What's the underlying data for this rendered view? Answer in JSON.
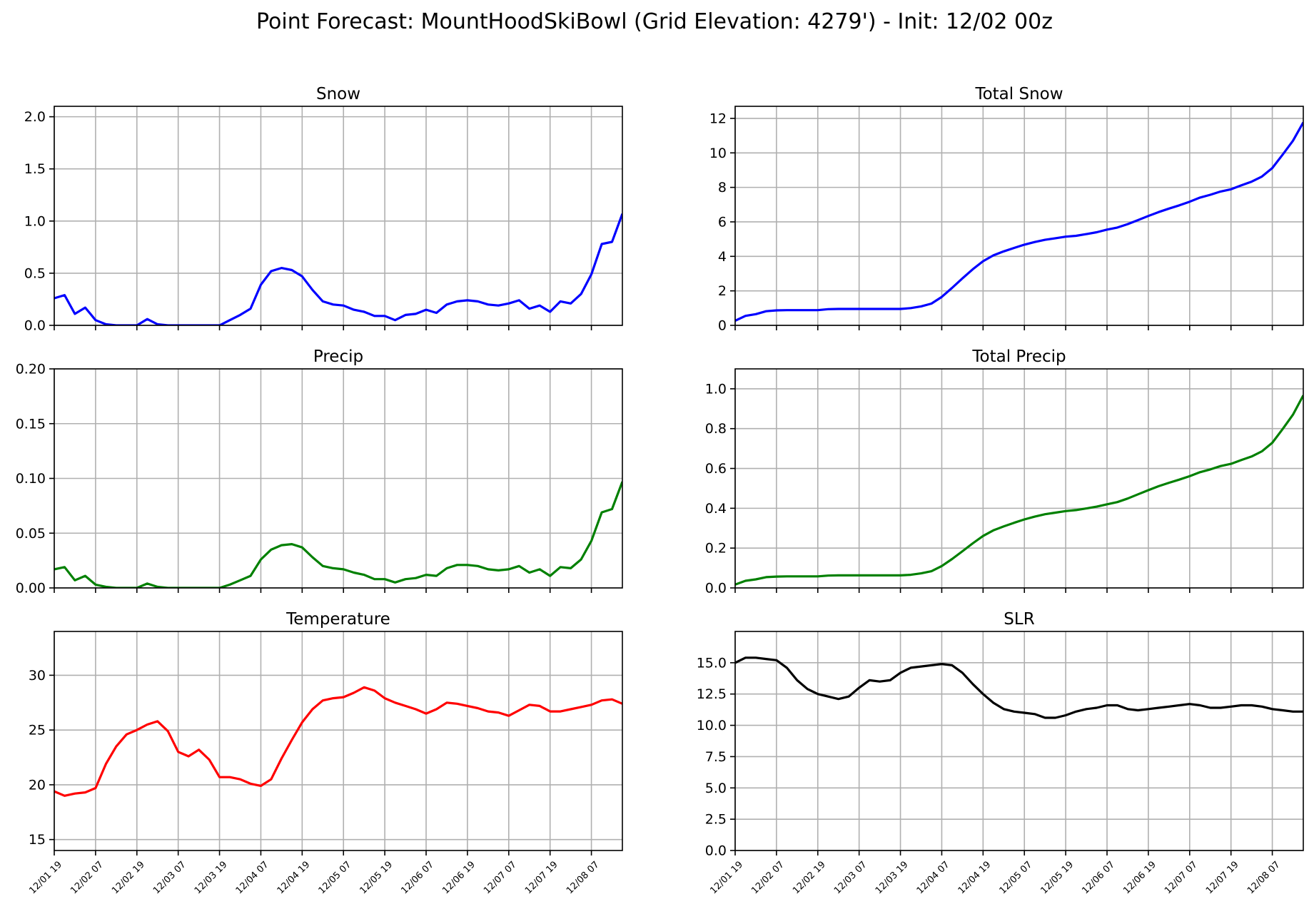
{
  "figure": {
    "title": "Point Forecast: MountHoodSkiBowl (Grid Elevation: 4279') - Init: 12/02 00z"
  },
  "x_tick_labels": [
    "12/01 19",
    "12/02 07",
    "12/02 19",
    "12/03 07",
    "12/03 19",
    "12/04 07",
    "12/04 19",
    "12/05 07",
    "12/05 19",
    "12/06 07",
    "12/06 19",
    "12/07 07",
    "12/07 19",
    "12/08 07"
  ],
  "chart_data": [
    {
      "id": "snow",
      "type": "line",
      "title": "Snow",
      "color": "#0000ff",
      "grid": true,
      "xlim": [
        0,
        55
      ],
      "ylim": [
        0,
        2.1
      ],
      "yticks": [
        0,
        0.5,
        1.0,
        1.5,
        2.0
      ],
      "ytick_labels": [
        "0.0",
        "0.5",
        "1.0",
        "1.5",
        "2.0"
      ],
      "xticks": [
        0,
        4,
        8,
        12,
        16,
        20,
        24,
        28,
        32,
        36,
        40,
        44,
        48,
        52
      ],
      "show_xtick_labels": false,
      "values": [
        0.26,
        0.29,
        0.11,
        0.17,
        0.05,
        0.01,
        0.0,
        0.0,
        0.0,
        0.06,
        0.01,
        0.0,
        0.0,
        0.0,
        0.0,
        0.0,
        0.0,
        0.05,
        0.1,
        0.16,
        0.39,
        0.52,
        0.55,
        0.53,
        0.47,
        0.34,
        0.23,
        0.2,
        0.19,
        0.15,
        0.13,
        0.09,
        0.09,
        0.05,
        0.1,
        0.11,
        0.15,
        0.12,
        0.2,
        0.23,
        0.24,
        0.23,
        0.2,
        0.19,
        0.21,
        0.24,
        0.16,
        0.19,
        0.13,
        0.23,
        0.21,
        0.3,
        0.49,
        0.78,
        0.8,
        1.07
      ]
    },
    {
      "id": "total-snow",
      "type": "line",
      "title": "Total Snow",
      "color": "#0000ff",
      "grid": true,
      "xlim": [
        0,
        55
      ],
      "ylim": [
        0,
        12.7
      ],
      "yticks": [
        0,
        2,
        4,
        6,
        8,
        10,
        12
      ],
      "ytick_labels": [
        "0",
        "2",
        "4",
        "6",
        "8",
        "10",
        "12"
      ],
      "xticks": [
        0,
        4,
        8,
        12,
        16,
        20,
        24,
        28,
        32,
        36,
        40,
        44,
        48,
        52
      ],
      "show_xtick_labels": false,
      "values": [
        0.27,
        0.55,
        0.65,
        0.82,
        0.87,
        0.88,
        0.88,
        0.88,
        0.88,
        0.94,
        0.95,
        0.95,
        0.95,
        0.95,
        0.95,
        0.95,
        0.95,
        1.0,
        1.1,
        1.26,
        1.65,
        2.17,
        2.72,
        3.25,
        3.72,
        4.06,
        4.29,
        4.49,
        4.68,
        4.83,
        4.96,
        5.05,
        5.14,
        5.19,
        5.29,
        5.4,
        5.55,
        5.67,
        5.87,
        6.1,
        6.34,
        6.57,
        6.77,
        6.96,
        7.17,
        7.41,
        7.57,
        7.76,
        7.89,
        8.12,
        8.33,
        8.63,
        9.12,
        9.9,
        10.7,
        11.77
      ]
    },
    {
      "id": "precip",
      "type": "line",
      "title": "Precip",
      "color": "#008000",
      "grid": true,
      "xlim": [
        0,
        55
      ],
      "ylim": [
        0,
        0.2
      ],
      "yticks": [
        0,
        0.05,
        0.1,
        0.15,
        0.2
      ],
      "ytick_labels": [
        "0.00",
        "0.05",
        "0.10",
        "0.15",
        "0.20"
      ],
      "xticks": [
        0,
        4,
        8,
        12,
        16,
        20,
        24,
        28,
        32,
        36,
        40,
        44,
        48,
        52
      ],
      "show_xtick_labels": false,
      "values": [
        0.017,
        0.019,
        0.007,
        0.011,
        0.003,
        0.001,
        0.0,
        0.0,
        0.0,
        0.004,
        0.001,
        0.0,
        0.0,
        0.0,
        0.0,
        0.0,
        0.0,
        0.003,
        0.007,
        0.011,
        0.026,
        0.035,
        0.039,
        0.04,
        0.037,
        0.028,
        0.02,
        0.018,
        0.017,
        0.014,
        0.012,
        0.008,
        0.008,
        0.005,
        0.008,
        0.009,
        0.012,
        0.011,
        0.018,
        0.021,
        0.021,
        0.02,
        0.017,
        0.016,
        0.017,
        0.02,
        0.014,
        0.017,
        0.011,
        0.019,
        0.018,
        0.026,
        0.043,
        0.069,
        0.072,
        0.097
      ]
    },
    {
      "id": "total-precip",
      "type": "line",
      "title": "Total Precip",
      "color": "#008000",
      "grid": true,
      "xlim": [
        0,
        55
      ],
      "ylim": [
        0,
        1.1
      ],
      "yticks": [
        0,
        0.2,
        0.4,
        0.6,
        0.8,
        1.0
      ],
      "ytick_labels": [
        "0.0",
        "0.2",
        "0.4",
        "0.6",
        "0.8",
        "1.0"
      ],
      "xticks": [
        0,
        4,
        8,
        12,
        16,
        20,
        24,
        28,
        32,
        36,
        40,
        44,
        48,
        52
      ],
      "show_xtick_labels": false,
      "values": [
        0.017,
        0.036,
        0.043,
        0.054,
        0.057,
        0.058,
        0.058,
        0.058,
        0.058,
        0.062,
        0.063,
        0.063,
        0.063,
        0.063,
        0.063,
        0.063,
        0.063,
        0.066,
        0.073,
        0.084,
        0.11,
        0.145,
        0.184,
        0.224,
        0.261,
        0.289,
        0.309,
        0.327,
        0.344,
        0.358,
        0.37,
        0.378,
        0.386,
        0.391,
        0.399,
        0.408,
        0.42,
        0.431,
        0.449,
        0.47,
        0.491,
        0.511,
        0.528,
        0.544,
        0.561,
        0.581,
        0.595,
        0.612,
        0.623,
        0.642,
        0.66,
        0.686,
        0.729,
        0.798,
        0.87,
        0.967
      ]
    },
    {
      "id": "temperature",
      "type": "line",
      "title": "Temperature",
      "color": "#ff0000",
      "grid": true,
      "xlim": [
        0,
        55
      ],
      "ylim": [
        14,
        34
      ],
      "yticks": [
        15,
        20,
        25,
        30
      ],
      "ytick_labels": [
        "15",
        "20",
        "25",
        "30"
      ],
      "xticks": [
        0,
        4,
        8,
        12,
        16,
        20,
        24,
        28,
        32,
        36,
        40,
        44,
        48,
        52
      ],
      "show_xtick_labels": true,
      "values": [
        19.4,
        19.0,
        19.2,
        19.3,
        19.7,
        21.9,
        23.5,
        24.6,
        25.0,
        25.5,
        25.8,
        24.9,
        23.0,
        22.6,
        23.2,
        22.3,
        20.7,
        20.7,
        20.5,
        20.1,
        19.9,
        20.5,
        22.4,
        24.1,
        25.7,
        26.9,
        27.7,
        27.9,
        28.0,
        28.4,
        28.9,
        28.6,
        27.9,
        27.5,
        27.2,
        26.9,
        26.5,
        26.9,
        27.5,
        27.4,
        27.2,
        27.0,
        26.7,
        26.6,
        26.3,
        26.8,
        27.3,
        27.2,
        26.7,
        26.7,
        26.9,
        27.1,
        27.3,
        27.7,
        27.8,
        27.4
      ]
    },
    {
      "id": "slr",
      "type": "line",
      "title": "SLR",
      "color": "#000000",
      "grid": true,
      "xlim": [
        0,
        55
      ],
      "ylim": [
        0,
        17.5
      ],
      "yticks": [
        0,
        2.5,
        5,
        7.5,
        10,
        12.5,
        15
      ],
      "ytick_labels": [
        "0.0",
        "2.5",
        "5.0",
        "7.5",
        "10.0",
        "12.5",
        "15.0"
      ],
      "xticks": [
        0,
        4,
        8,
        12,
        16,
        20,
        24,
        28,
        32,
        36,
        40,
        44,
        48,
        52
      ],
      "show_xtick_labels": true,
      "values": [
        15.0,
        15.4,
        15.4,
        15.3,
        15.2,
        14.6,
        13.6,
        12.9,
        12.5,
        12.3,
        12.1,
        12.3,
        13.0,
        13.6,
        13.5,
        13.6,
        14.2,
        14.6,
        14.7,
        14.8,
        14.9,
        14.8,
        14.2,
        13.3,
        12.5,
        11.8,
        11.3,
        11.1,
        11.0,
        10.9,
        10.6,
        10.6,
        10.8,
        11.1,
        11.3,
        11.4,
        11.6,
        11.6,
        11.3,
        11.2,
        11.3,
        11.4,
        11.5,
        11.6,
        11.7,
        11.6,
        11.4,
        11.4,
        11.5,
        11.6,
        11.6,
        11.5,
        11.3,
        11.2,
        11.1,
        11.1
      ]
    }
  ]
}
